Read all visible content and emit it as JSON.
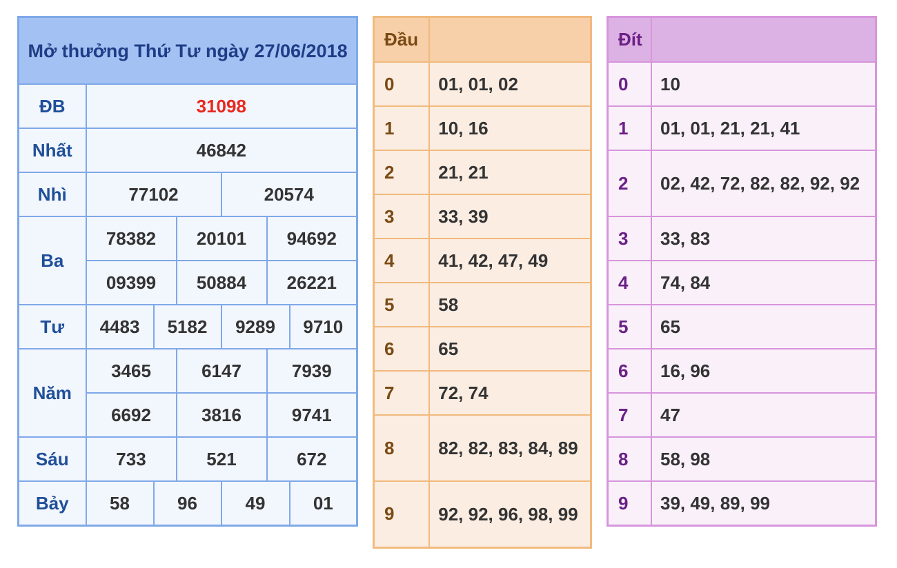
{
  "results": {
    "title": "Mở thưởng Thứ Tư ngày 27/06/2018",
    "db": {
      "label": "ĐB",
      "values": [
        "31098"
      ]
    },
    "nhat": {
      "label": "Nhất",
      "values": [
        "46842"
      ]
    },
    "nhi": {
      "label": "Nhì",
      "values": [
        "77102",
        "20574"
      ]
    },
    "ba": {
      "label": "Ba",
      "values": [
        "78382",
        "20101",
        "94692",
        "09399",
        "50884",
        "26221"
      ]
    },
    "tu": {
      "label": "Tư",
      "values": [
        "4483",
        "5182",
        "9289",
        "9710"
      ]
    },
    "nam": {
      "label": "Năm",
      "values": [
        "3465",
        "6147",
        "7939",
        "6692",
        "3816",
        "9741"
      ]
    },
    "sau": {
      "label": "Sáu",
      "values": [
        "733",
        "521",
        "672"
      ]
    },
    "bay": {
      "label": "Bảy",
      "values": [
        "58",
        "96",
        "49",
        "01"
      ]
    }
  },
  "dau": {
    "header": "Đầu",
    "rows": [
      {
        "key": "0",
        "values": "01, 01, 02"
      },
      {
        "key": "1",
        "values": "10, 16"
      },
      {
        "key": "2",
        "values": "21, 21"
      },
      {
        "key": "3",
        "values": "33, 39"
      },
      {
        "key": "4",
        "values": "41, 42, 47, 49"
      },
      {
        "key": "5",
        "values": "58"
      },
      {
        "key": "6",
        "values": "65"
      },
      {
        "key": "7",
        "values": "72, 74"
      },
      {
        "key": "8",
        "values": "82, 82, 83, 84, 89"
      },
      {
        "key": "9",
        "values": "92, 92, 96, 98, 99"
      }
    ]
  },
  "dit": {
    "header": "Đít",
    "rows": [
      {
        "key": "0",
        "values": "10"
      },
      {
        "key": "1",
        "values": "01, 01, 21, 21, 41"
      },
      {
        "key": "2",
        "values": "02, 42, 72, 82, 82, 92, 92"
      },
      {
        "key": "3",
        "values": "33, 83"
      },
      {
        "key": "4",
        "values": "74, 84"
      },
      {
        "key": "5",
        "values": "65"
      },
      {
        "key": "6",
        "values": "16, 96"
      },
      {
        "key": "7",
        "values": "47"
      },
      {
        "key": "8",
        "values": "58, 98"
      },
      {
        "key": "9",
        "values": "39, 49, 89, 99"
      }
    ]
  },
  "colors": {
    "special_number": "#e8281f",
    "results_border": "#7fa8e8",
    "dau_border": "#f1ba7d",
    "dit_border": "#d795dc"
  }
}
